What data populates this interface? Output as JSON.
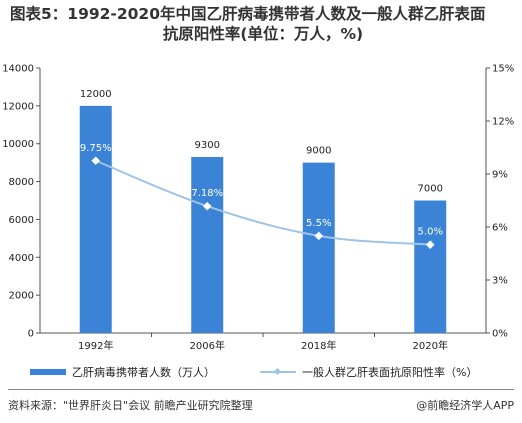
{
  "title_line1": "图表5：1992-2020年中国乙肝病毒携带者人数及一般人群乙肝表面",
  "title_line2": "抗原阳性率(单位：万人，%)",
  "chart_data": {
    "type": "bar",
    "categories": [
      "1992年",
      "2006年",
      "2018年",
      "2020年"
    ],
    "series": [
      {
        "name": "乙肝病毒携带者人数（万人）",
        "type": "bar",
        "axis": "left",
        "values": [
          12000,
          9300,
          9000,
          7000
        ],
        "labels": [
          "12000",
          "9300",
          "9000",
          "7000"
        ],
        "color": "#3a83d6"
      },
      {
        "name": "一般人群乙肝表面抗原阳性率（%）",
        "type": "line",
        "axis": "right",
        "values": [
          9.75,
          7.18,
          5.5,
          5.0
        ],
        "labels": [
          "9.75%",
          "7.18%",
          "5.5%",
          "5.0%"
        ],
        "color": "#9fc3e6"
      }
    ],
    "y_left": {
      "min": 0,
      "max": 14000,
      "ticks": [
        "0",
        "2000",
        "4000",
        "6000",
        "8000",
        "10000",
        "12000",
        "14000"
      ]
    },
    "y_right": {
      "min": 0,
      "max": 15,
      "ticks": [
        "0%",
        "3%",
        "6%",
        "9%",
        "12%",
        "15%"
      ]
    },
    "grid": false,
    "legend_position": "bottom"
  },
  "source": "资料来源：\"世界肝炎日\"会议 前瞻产业研究院整理",
  "brand": "@前瞻经济学人APP"
}
